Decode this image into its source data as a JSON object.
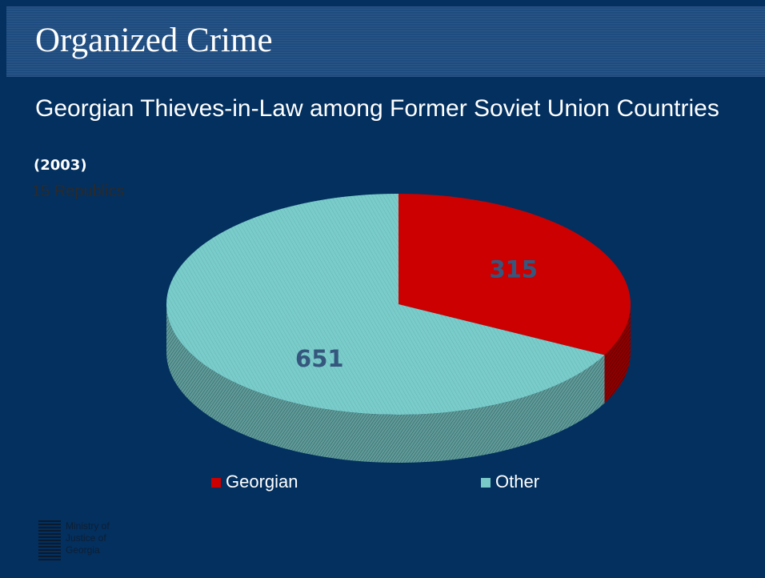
{
  "slide": {
    "title": "Organized Crime",
    "subtitle": "Georgian Thieves-in-Law among Former Soviet Union Countries",
    "year": "(2003)",
    "note": "15 Republics",
    "logo_text": "Ministry of\nJustice of\nGeorgia"
  },
  "colors": {
    "background": "#03305f",
    "title_band": "#1f4c80",
    "georgian": "#cc0000",
    "other": "#78c9c8",
    "data_label": "#35577e"
  },
  "chart_data": {
    "type": "pie",
    "style": "3d",
    "title": "Georgian Thieves-in-Law among Former Soviet Union Countries",
    "subtitle": "(2003)",
    "legend_position": "bottom",
    "slices": [
      {
        "label": "Georgian",
        "value": 315,
        "value_label": "315",
        "color": "#cc0000"
      },
      {
        "label": "Other",
        "value": 651,
        "value_label": "651",
        "color": "#78c9c8"
      }
    ]
  }
}
